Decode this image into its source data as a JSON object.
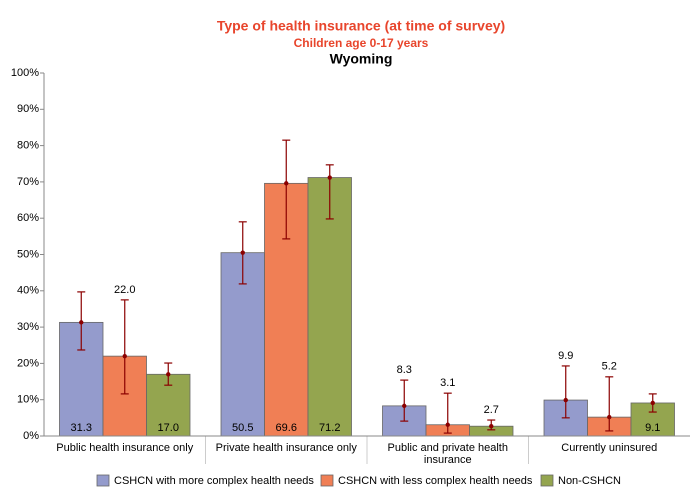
{
  "chart_data": {
    "type": "bar",
    "title": "Type of health insurance (at time of survey)",
    "subtitle": "Children age 0-17 years",
    "subtitle2": "Wyoming",
    "categories": [
      "Public health insurance only",
      "Private health insurance only",
      "Public and private health insurance",
      "Currently uninsured"
    ],
    "series": [
      {
        "name": "CSHCN with more complex health needs",
        "color": "#949bcc",
        "values": [
          31.3,
          50.5,
          8.3,
          9.9
        ],
        "value_labels": [
          "31.3",
          "50.5",
          "8.3",
          "9.9"
        ],
        "error_low": [
          23.7,
          41.9,
          4.1,
          5.0
        ],
        "error_high": [
          39.7,
          59.0,
          15.4,
          19.3
        ]
      },
      {
        "name": "CSHCN with less complex health needs",
        "color": "#f07f55",
        "values": [
          22.0,
          69.6,
          3.1,
          5.2
        ],
        "value_labels": [
          "22.0",
          "69.6",
          "3.1",
          "5.2"
        ],
        "error_low": [
          11.6,
          54.3,
          0.8,
          1.4
        ],
        "error_high": [
          37.5,
          81.5,
          11.8,
          16.3
        ]
      },
      {
        "name": "Non-CSHCN",
        "color": "#94a54f",
        "values": [
          17.0,
          71.2,
          2.7,
          9.1
        ],
        "value_labels": [
          "17.0",
          "71.2",
          "2.7",
          "9.1"
        ],
        "error_low": [
          14.0,
          59.8,
          1.7,
          6.6
        ],
        "error_high": [
          20.1,
          74.7,
          4.4,
          11.6
        ]
      }
    ],
    "error_color": "#8b0000",
    "ylim": [
      0,
      100
    ],
    "yticks": [
      {
        "value": 0,
        "label": "0%"
      },
      {
        "value": 10,
        "label": "10%"
      },
      {
        "value": 20,
        "label": "20%"
      },
      {
        "value": 30,
        "label": "30%"
      },
      {
        "value": 40,
        "label": "40%"
      },
      {
        "value": 50,
        "label": "50%"
      },
      {
        "value": 60,
        "label": "60%"
      },
      {
        "value": 70,
        "label": "70%"
      },
      {
        "value": 80,
        "label": "80%"
      },
      {
        "value": 90,
        "label": "90%"
      },
      {
        "value": 100,
        "label": "100%"
      }
    ],
    "grid": false,
    "legend": "bottom"
  }
}
